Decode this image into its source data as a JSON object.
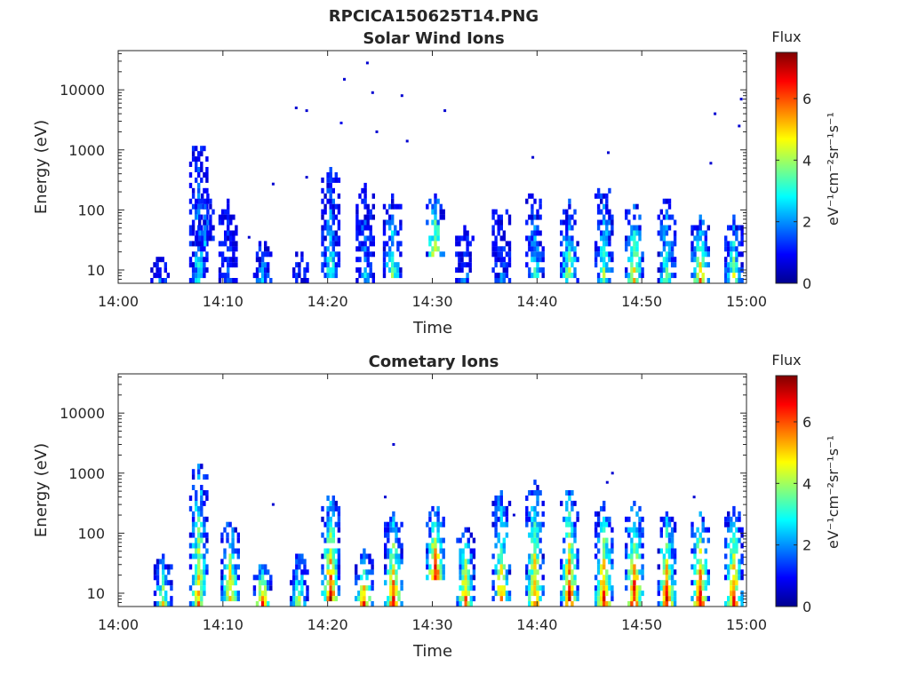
{
  "figure": {
    "file_title": "RPCICA150625T14.PNG"
  },
  "colorbar": {
    "title": "Flux",
    "unit_label": "eV⁻¹cm⁻²sr⁻¹s⁻¹",
    "ticks": [
      "0",
      "2",
      "4",
      "6"
    ]
  },
  "chart_data": [
    {
      "type": "heatmap",
      "title": "Solar Wind Ions",
      "xlabel": "Time",
      "ylabel": "Energy (eV)",
      "yscale": "log",
      "ylim": [
        6,
        45000
      ],
      "xlim": [
        "14:00",
        "15:00"
      ],
      "x_ticks": [
        "14:00",
        "14:10",
        "14:20",
        "14:30",
        "14:40",
        "14:50",
        "15:00"
      ],
      "y_ticks": [
        "10",
        "100",
        "1000",
        "10000"
      ],
      "clim": [
        0,
        7.5
      ],
      "grid": false,
      "colormap": "jet",
      "bursts": [
        {
          "t": 4.0,
          "emin": 6,
          "emax": 16,
          "peak": 1.5
        },
        {
          "t": 7.7,
          "emin": 6,
          "emax": 1300,
          "peak": 2.8
        },
        {
          "t": 8.3,
          "emin": 25,
          "emax": 180,
          "peak": 2.2
        },
        {
          "t": 10.5,
          "emin": 6,
          "emax": 130,
          "peak": 1.4
        },
        {
          "t": 13.8,
          "emin": 6,
          "emax": 28,
          "peak": 2.6
        },
        {
          "t": 17.3,
          "emin": 6,
          "emax": 20,
          "peak": 1.4
        },
        {
          "t": 20.3,
          "emin": 8,
          "emax": 450,
          "peak": 3.3
        },
        {
          "t": 23.6,
          "emin": 6,
          "emax": 240,
          "peak": 2.4
        },
        {
          "t": 26.2,
          "emin": 8,
          "emax": 160,
          "peak": 3.6
        },
        {
          "t": 30.3,
          "emin": 15,
          "emax": 170,
          "peak": 5.2
        },
        {
          "t": 33.1,
          "emin": 6,
          "emax": 55,
          "peak": 2.0
        },
        {
          "t": 36.6,
          "emin": 6,
          "emax": 130,
          "peak": 1.6
        },
        {
          "t": 39.8,
          "emin": 8,
          "emax": 210,
          "peak": 2.9
        },
        {
          "t": 43.1,
          "emin": 6,
          "emax": 140,
          "peak": 4.3
        },
        {
          "t": 46.4,
          "emin": 6,
          "emax": 260,
          "peak": 4.0
        },
        {
          "t": 49.3,
          "emin": 6,
          "emax": 130,
          "peak": 5.0
        },
        {
          "t": 52.4,
          "emin": 6,
          "emax": 150,
          "peak": 4.0
        },
        {
          "t": 55.6,
          "emin": 6,
          "emax": 70,
          "peak": 5.6
        },
        {
          "t": 58.8,
          "emin": 6,
          "emax": 70,
          "peak": 4.4
        }
      ],
      "scatter": [
        {
          "t": 17.0,
          "e": 5000,
          "v": 0.6
        },
        {
          "t": 18.0,
          "e": 4500,
          "v": 0.6
        },
        {
          "t": 21.3,
          "e": 2800,
          "v": 0.8
        },
        {
          "t": 21.6,
          "e": 15000,
          "v": 0.6
        },
        {
          "t": 23.8,
          "e": 28000,
          "v": 0.6
        },
        {
          "t": 24.3,
          "e": 9000,
          "v": 0.6
        },
        {
          "t": 24.7,
          "e": 2000,
          "v": 0.6
        },
        {
          "t": 27.1,
          "e": 8000,
          "v": 0.6
        },
        {
          "t": 27.6,
          "e": 1400,
          "v": 0.6
        },
        {
          "t": 31.2,
          "e": 4500,
          "v": 0.6
        },
        {
          "t": 39.6,
          "e": 750,
          "v": 0.6
        },
        {
          "t": 46.8,
          "e": 900,
          "v": 0.6
        },
        {
          "t": 57.0,
          "e": 4000,
          "v": 0.6
        },
        {
          "t": 59.5,
          "e": 7000,
          "v": 0.6
        },
        {
          "t": 59.3,
          "e": 2500,
          "v": 0.6
        },
        {
          "t": 56.6,
          "e": 600,
          "v": 0.6
        },
        {
          "t": 14.8,
          "e": 270,
          "v": 0.6
        },
        {
          "t": 18.0,
          "e": 350,
          "v": 0.6
        },
        {
          "t": 12.5,
          "e": 35,
          "v": 0.6
        }
      ]
    },
    {
      "type": "heatmap",
      "title": "Cometary Ions",
      "xlabel": "Time",
      "ylabel": "Energy (eV)",
      "yscale": "log",
      "ylim": [
        6,
        45000
      ],
      "xlim": [
        "14:00",
        "15:00"
      ],
      "x_ticks": [
        "14:00",
        "14:10",
        "14:20",
        "14:30",
        "14:40",
        "14:50",
        "15:00"
      ],
      "y_ticks": [
        "10",
        "100",
        "1000",
        "10000"
      ],
      "clim": [
        0,
        7.5
      ],
      "grid": false,
      "colormap": "jet",
      "bursts": [
        {
          "t": 4.3,
          "emin": 6,
          "emax": 45,
          "peak": 4.6
        },
        {
          "t": 7.7,
          "emin": 6,
          "emax": 1400,
          "peak": 5.6
        },
        {
          "t": 10.7,
          "emin": 8,
          "emax": 150,
          "peak": 5.8
        },
        {
          "t": 13.8,
          "emin": 6,
          "emax": 30,
          "peak": 6.8
        },
        {
          "t": 17.3,
          "emin": 6,
          "emax": 45,
          "peak": 4.3
        },
        {
          "t": 20.3,
          "emin": 8,
          "emax": 400,
          "peak": 6.8
        },
        {
          "t": 23.5,
          "emin": 6,
          "emax": 50,
          "peak": 6.3
        },
        {
          "t": 26.3,
          "emin": 6,
          "emax": 200,
          "peak": 6.6
        },
        {
          "t": 30.3,
          "emin": 15,
          "emax": 280,
          "peak": 7.3
        },
        {
          "t": 33.2,
          "emin": 6,
          "emax": 120,
          "peak": 6.4
        },
        {
          "t": 36.6,
          "emin": 8,
          "emax": 450,
          "peak": 5.6
        },
        {
          "t": 39.8,
          "emin": 6,
          "emax": 650,
          "peak": 6.1
        },
        {
          "t": 43.1,
          "emin": 6,
          "emax": 500,
          "peak": 6.9
        },
        {
          "t": 46.4,
          "emin": 6,
          "emax": 300,
          "peak": 6.9
        },
        {
          "t": 49.3,
          "emin": 6,
          "emax": 300,
          "peak": 7.3
        },
        {
          "t": 52.4,
          "emin": 6,
          "emax": 200,
          "peak": 6.9
        },
        {
          "t": 55.6,
          "emin": 6,
          "emax": 200,
          "peak": 7.2
        },
        {
          "t": 58.8,
          "emin": 6,
          "emax": 250,
          "peak": 6.6
        }
      ],
      "scatter": [
        {
          "t": 26.3,
          "e": 3000,
          "v": 0.6
        },
        {
          "t": 46.7,
          "e": 700,
          "v": 0.6
        },
        {
          "t": 47.2,
          "e": 1000,
          "v": 0.6
        },
        {
          "t": 25.5,
          "e": 400,
          "v": 0.6
        },
        {
          "t": 14.8,
          "e": 300,
          "v": 0.6
        },
        {
          "t": 37.8,
          "e": 200,
          "v": 0.6
        },
        {
          "t": 55.0,
          "e": 400,
          "v": 0.6
        }
      ]
    }
  ]
}
